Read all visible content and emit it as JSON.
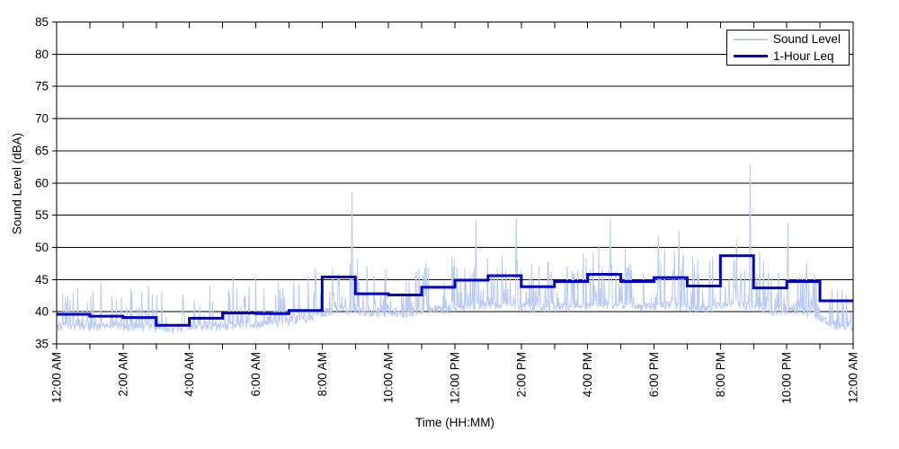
{
  "chart_data": {
    "type": "line",
    "title": "",
    "xlabel": "Time (HH:MM)",
    "ylabel": "Sound Level (dBA)",
    "ylim": [
      35,
      85
    ],
    "y_ticks": [
      35,
      40,
      45,
      50,
      55,
      60,
      65,
      70,
      75,
      80,
      85
    ],
    "x_hours": 24,
    "x_tick_interval_hours": 2,
    "x_minor_tick_hours": 1,
    "grid": "horizontal",
    "legend_position": "top-right",
    "x_tick_labels": [
      "12:00 AM",
      "2:00 AM",
      "4:00 AM",
      "6:00 AM",
      "8:00 AM",
      "10:00 AM",
      "12:00 PM",
      "2:00 PM",
      "4:00 PM",
      "6:00 PM",
      "8:00 PM",
      "10:00 PM",
      "12:00 AM"
    ],
    "legend": [
      "Sound Level",
      "1-Hour Leq"
    ],
    "colors": {
      "sound_level": "#B9CBF4",
      "leq": "#0000CC",
      "axis": "#000000",
      "background": "#FFFFFF"
    },
    "series": [
      {
        "name": "1-Hour Leq",
        "style": "step",
        "hourly_leq": [
          39.6,
          39.3,
          39.1,
          37.9,
          39.0,
          39.8,
          39.7,
          40.2,
          45.4,
          42.8,
          42.6,
          43.8,
          44.9,
          45.6,
          43.9,
          44.7,
          45.8,
          44.7,
          45.3,
          44.0,
          48.7,
          43.7,
          44.7,
          41.7
        ]
      },
      {
        "name": "Sound Level",
        "style": "noisy-line",
        "points_per_hour": 60,
        "hourly_envelope_base": [
          37.6,
          37.5,
          37.4,
          37.2,
          37.4,
          37.7,
          38.0,
          38.8,
          40.2,
          39.6,
          39.5,
          40.1,
          40.7,
          41.0,
          40.3,
          40.6,
          41.0,
          40.6,
          40.8,
          40.2,
          41.2,
          39.9,
          39.9,
          37.6
        ],
        "hourly_envelope_peak": [
          45.5,
          45.0,
          44.5,
          43.5,
          44.5,
          45.5,
          45.0,
          46.0,
          50.0,
          47.5,
          47.0,
          48.5,
          49.5,
          50.0,
          48.5,
          49.0,
          50.5,
          49.5,
          50.5,
          49.0,
          52.0,
          48.5,
          49.5,
          44.5
        ],
        "notable_peaks": [
          {
            "time_h": 8.9,
            "value": 58.7
          },
          {
            "time_h": 12.64,
            "value": 54.1
          },
          {
            "time_h": 13.85,
            "value": 54.6
          },
          {
            "time_h": 16.68,
            "value": 54.5
          },
          {
            "time_h": 18.13,
            "value": 51.8
          },
          {
            "time_h": 18.75,
            "value": 52.5
          },
          {
            "time_h": 20.9,
            "value": 62.8
          },
          {
            "time_h": 22.03,
            "value": 53.9
          }
        ]
      }
    ]
  }
}
